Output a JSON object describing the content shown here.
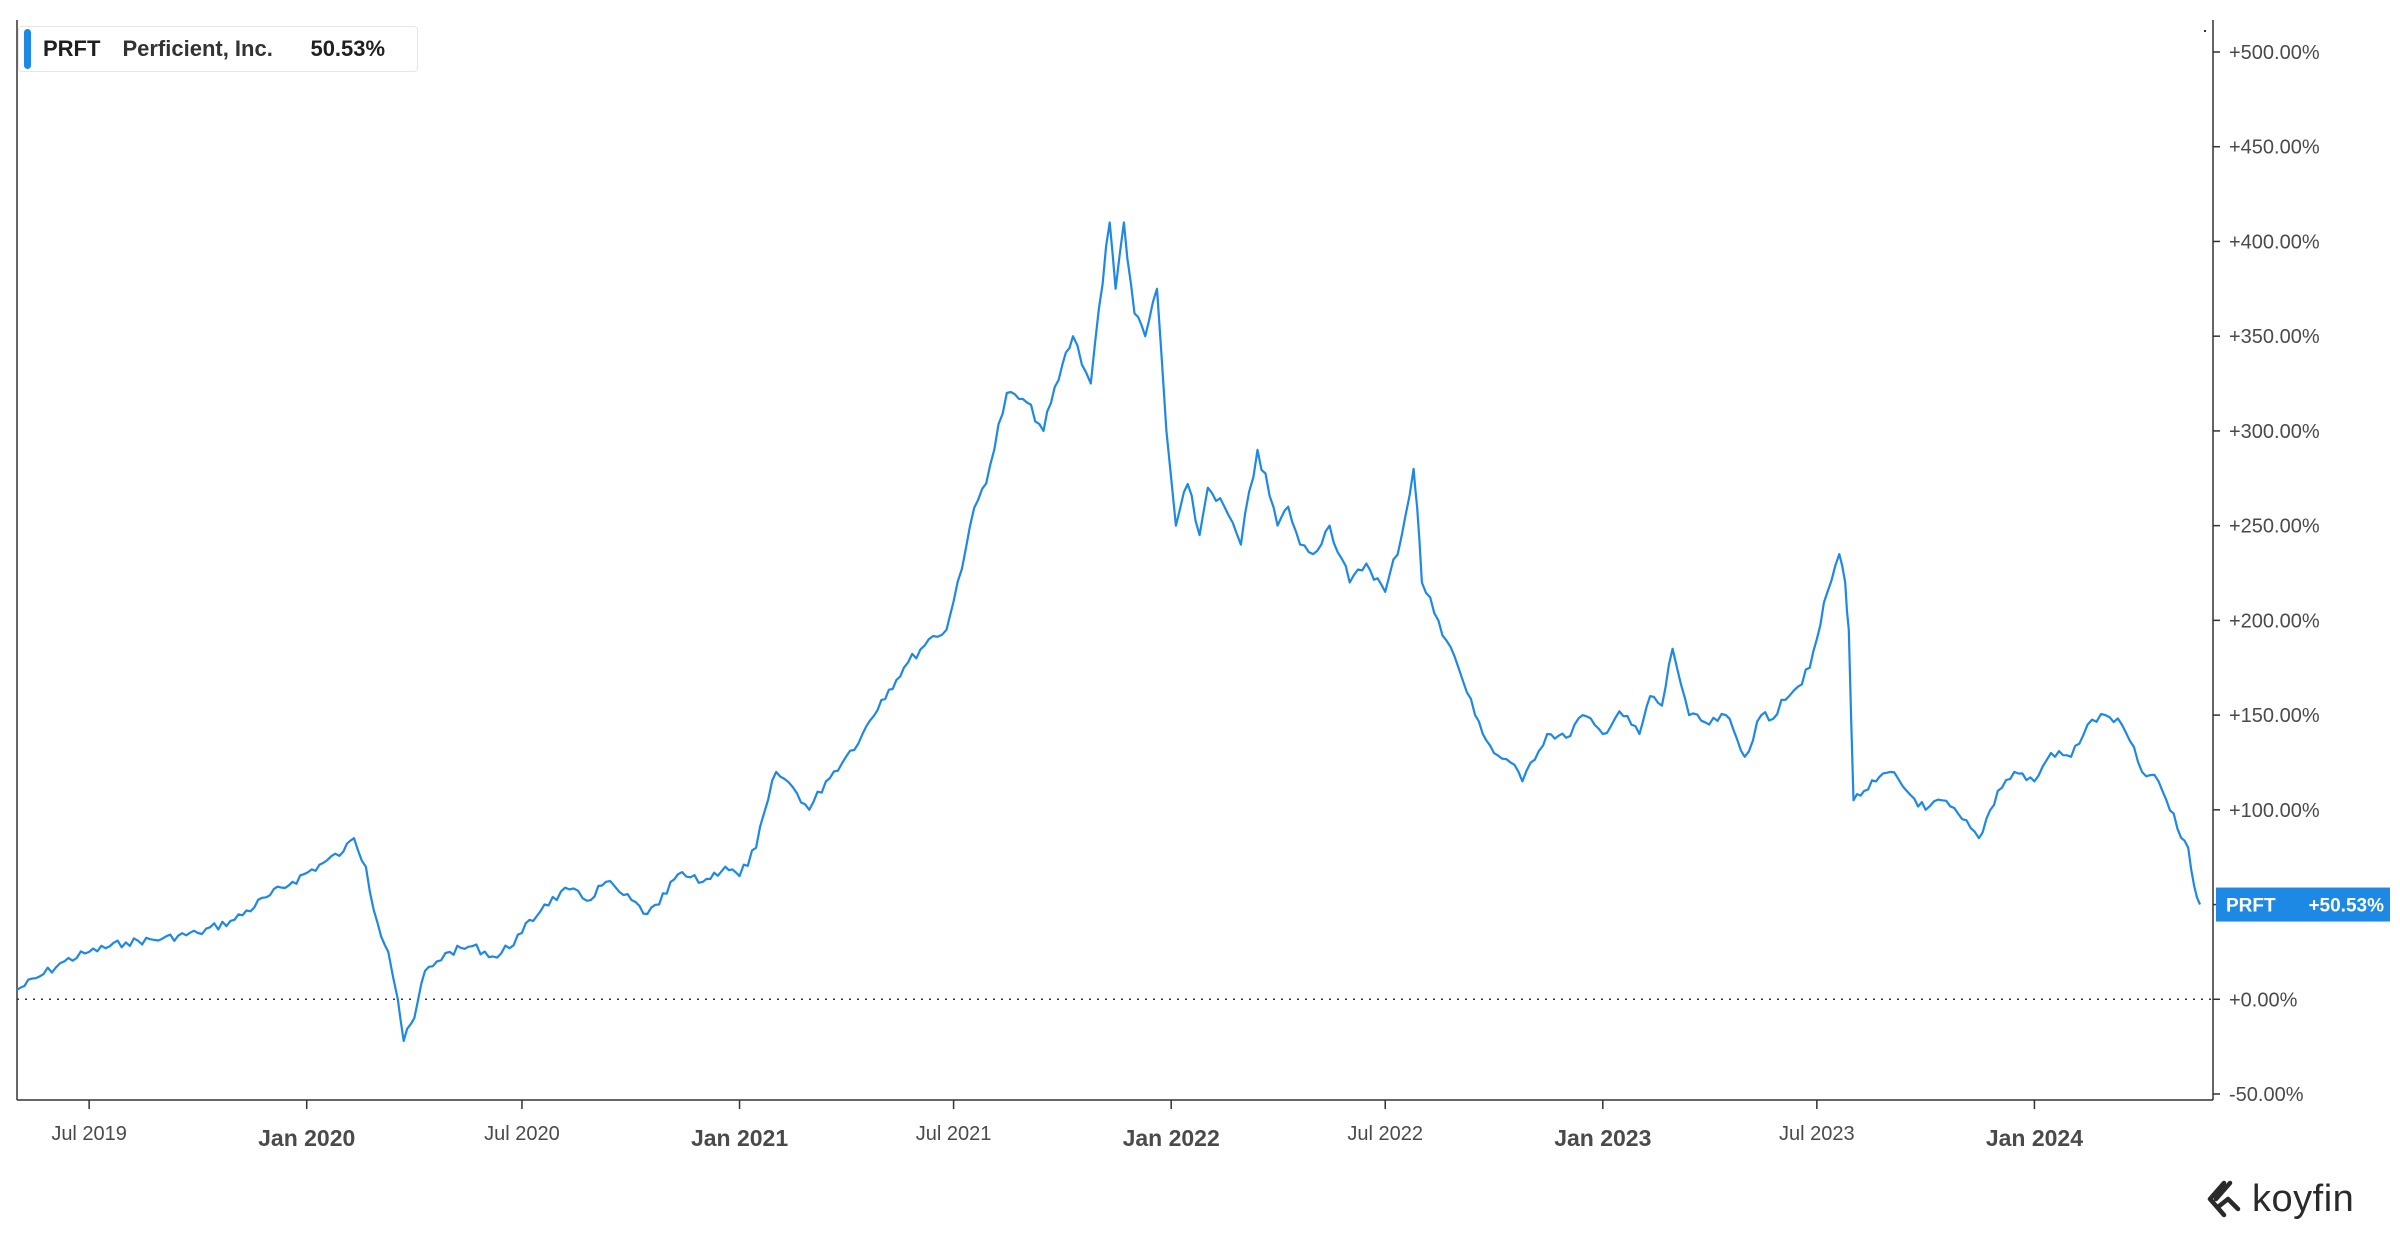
{
  "legend": {
    "ticker": "PRFT",
    "name": "Perficient, Inc.",
    "value": "50.53%"
  },
  "last_label": {
    "ticker": "PRFT",
    "value": "+50.53%"
  },
  "brand": {
    "name": "koyfin"
  },
  "colors": {
    "line": "#1e88e5",
    "badge": "#1e88e5",
    "axis_text": "#4a4a4a",
    "grid": "#333333"
  },
  "chart_data": {
    "type": "line",
    "y_axis_position": "right",
    "y_unit": "percent",
    "ylim": [
      -50,
      500
    ],
    "y_ticks": [
      -50,
      0,
      50,
      100,
      150,
      200,
      250,
      300,
      350,
      400,
      450,
      500
    ],
    "y_tick_labels": [
      "-50.00%",
      "+0.00%",
      "+50.00%",
      "+100.00%",
      "+150.00%",
      "+200.00%",
      "+250.00%",
      "+300.00%",
      "+350.00%",
      "+400.00%",
      "+450.00%",
      "+500.00%"
    ],
    "xlim": [
      "2019-05-01",
      "2024-05-31"
    ],
    "x_ticks": [
      {
        "date": "2019-07-01",
        "label": "Jul 2019",
        "major": false
      },
      {
        "date": "2020-01-01",
        "label": "Jan 2020",
        "major": true
      },
      {
        "date": "2020-07-01",
        "label": "Jul 2020",
        "major": false
      },
      {
        "date": "2021-01-01",
        "label": "Jan 2021",
        "major": true
      },
      {
        "date": "2021-07-01",
        "label": "Jul 2021",
        "major": false
      },
      {
        "date": "2022-01-01",
        "label": "Jan 2022",
        "major": true
      },
      {
        "date": "2022-07-01",
        "label": "Jul 2022",
        "major": false
      },
      {
        "date": "2023-01-01",
        "label": "Jan 2023",
        "major": true
      },
      {
        "date": "2023-07-01",
        "label": "Jul 2023",
        "major": false
      },
      {
        "date": "2024-01-01",
        "label": "Jan 2024",
        "major": true
      }
    ],
    "baseline": 0,
    "grid": false,
    "series": [
      {
        "name": "PRFT",
        "x": [
          "2019-05-01",
          "2019-05-20",
          "2019-06-10",
          "2019-07-01",
          "2019-08-01",
          "2019-09-01",
          "2019-10-01",
          "2019-11-01",
          "2019-12-01",
          "2019-12-20",
          "2020-01-15",
          "2020-02-01",
          "2020-02-10",
          "2020-02-20",
          "2020-03-01",
          "2020-03-10",
          "2020-03-18",
          "2020-03-23",
          "2020-04-01",
          "2020-04-10",
          "2020-04-20",
          "2020-05-01",
          "2020-05-20",
          "2020-06-10",
          "2020-07-01",
          "2020-07-20",
          "2020-08-10",
          "2020-08-25",
          "2020-09-10",
          "2020-09-25",
          "2020-10-15",
          "2020-10-25",
          "2020-11-10",
          "2020-12-01",
          "2020-12-20",
          "2021-01-01",
          "2021-01-15",
          "2021-02-01",
          "2021-02-15",
          "2021-03-01",
          "2021-03-15",
          "2021-04-01",
          "2021-04-15",
          "2021-05-01",
          "2021-05-20",
          "2021-06-10",
          "2021-06-25",
          "2021-07-01",
          "2021-07-15",
          "2021-08-01",
          "2021-08-15",
          "2021-09-01",
          "2021-09-15",
          "2021-10-01",
          "2021-10-10",
          "2021-10-25",
          "2021-11-01",
          "2021-11-10",
          "2021-11-15",
          "2021-11-22",
          "2021-12-01",
          "2021-12-10",
          "2021-12-20",
          "2021-12-28",
          "2022-01-05",
          "2022-01-15",
          "2022-01-25",
          "2022-02-01",
          "2022-02-15",
          "2022-03-01",
          "2022-03-15",
          "2022-04-01",
          "2022-04-10",
          "2022-04-20",
          "2022-05-01",
          "2022-05-15",
          "2022-06-01",
          "2022-06-15",
          "2022-07-01",
          "2022-07-15",
          "2022-07-25",
          "2022-07-28",
          "2022-08-01",
          "2022-08-15",
          "2022-09-01",
          "2022-09-15",
          "2022-10-01",
          "2022-10-15",
          "2022-10-25",
          "2022-11-01",
          "2022-11-15",
          "2022-12-01",
          "2022-12-15",
          "2023-01-01",
          "2023-01-15",
          "2023-02-01",
          "2023-02-10",
          "2023-02-20",
          "2023-03-01",
          "2023-03-15",
          "2023-04-01",
          "2023-04-15",
          "2023-05-01",
          "2023-05-15",
          "2023-05-25",
          "2023-06-01",
          "2023-06-15",
          "2023-06-25",
          "2023-07-01",
          "2023-07-10",
          "2023-07-20",
          "2023-07-25",
          "2023-07-28",
          "2023-08-01",
          "2023-08-10",
          "2023-08-20",
          "2023-09-01",
          "2023-09-15",
          "2023-10-01",
          "2023-10-15",
          "2023-11-01",
          "2023-11-15",
          "2023-12-01",
          "2023-12-15",
          "2024-01-01",
          "2024-01-15",
          "2024-02-01",
          "2024-02-15",
          "2024-03-01",
          "2024-03-15",
          "2024-04-01",
          "2024-04-15",
          "2024-05-01",
          "2024-05-10",
          "2024-05-15",
          "2024-05-20"
        ],
        "values": [
          5,
          12,
          20,
          25,
          30,
          32,
          35,
          42,
          55,
          62,
          72,
          78,
          85,
          70,
          40,
          25,
          0,
          -22,
          -10,
          15,
          20,
          25,
          28,
          22,
          35,
          50,
          58,
          52,
          62,
          55,
          45,
          50,
          66,
          62,
          70,
          65,
          80,
          120,
          112,
          100,
          115,
          128,
          140,
          158,
          175,
          190,
          195,
          210,
          250,
          282,
          320,
          315,
          300,
          335,
          350,
          325,
          365,
          410,
          375,
          410,
          362,
          350,
          375,
          300,
          250,
          272,
          245,
          270,
          260,
          240,
          290,
          250,
          260,
          240,
          235,
          250,
          220,
          230,
          215,
          245,
          280,
          260,
          220,
          200,
          175,
          150,
          130,
          125,
          115,
          125,
          140,
          138,
          150,
          140,
          152,
          140,
          160,
          155,
          185,
          150,
          145,
          150,
          128,
          150,
          148,
          158,
          165,
          175,
          190,
          215,
          235,
          220,
          195,
          105,
          110,
          115,
          120,
          110,
          100,
          105,
          95,
          85,
          110,
          120,
          115,
          130,
          128,
          145,
          150,
          145,
          120,
          115,
          90,
          80,
          60,
          50
        ]
      }
    ]
  }
}
